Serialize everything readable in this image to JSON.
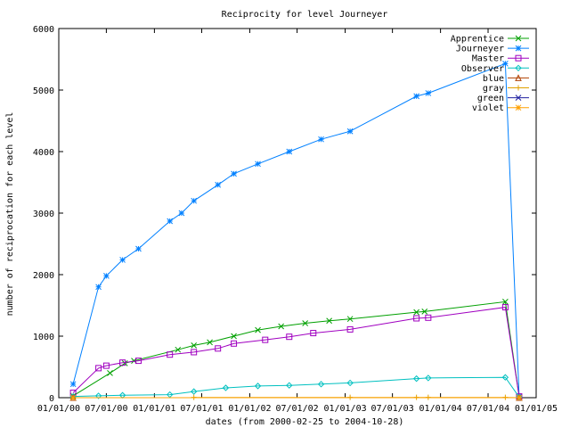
{
  "chart_data": {
    "type": "line",
    "title": "Reciprocity for level Journeyer",
    "xlabel": "dates (from 2000-02-25 to 2004-10-28)",
    "ylabel": "number of reciprocation for each level",
    "ylim": [
      0,
      6000
    ],
    "yticks": [
      0,
      1000,
      2000,
      3000,
      4000,
      5000,
      6000
    ],
    "xlim": [
      "2000-01-01",
      "2005-01-01"
    ],
    "xtick_dates": [
      "2000-01-01",
      "2000-07-01",
      "2001-01-01",
      "2001-07-01",
      "2002-01-01",
      "2002-07-01",
      "2003-01-01",
      "2003-07-01",
      "2004-01-01",
      "2004-07-01",
      "2005-01-01"
    ],
    "xtick_labels": [
      "01/01/00",
      "07/01/00",
      "01/01/01",
      "07/01/01",
      "01/01/02",
      "07/01/02",
      "01/01/03",
      "07/01/03",
      "01/01/04",
      "07/01/04",
      "01/01/05"
    ],
    "grid": false,
    "legend_position": "top-right",
    "series": [
      {
        "name": "Apprentice",
        "color": "#00a000",
        "marker": "x",
        "points": [
          [
            "2000-02-25",
            30
          ],
          [
            "2000-07-15",
            400
          ],
          [
            "2000-09-10",
            560
          ],
          [
            "2000-10-15",
            600
          ],
          [
            "2001-04-01",
            780
          ],
          [
            "2001-06-01",
            850
          ],
          [
            "2001-08-01",
            900
          ],
          [
            "2001-11-01",
            1000
          ],
          [
            "2002-02-01",
            1100
          ],
          [
            "2002-05-01",
            1160
          ],
          [
            "2002-08-01",
            1210
          ],
          [
            "2002-11-01",
            1250
          ],
          [
            "2003-01-20",
            1280
          ],
          [
            "2003-10-01",
            1390
          ],
          [
            "2003-11-01",
            1400
          ],
          [
            "2004-09-05",
            1560
          ],
          [
            "2004-10-28",
            20
          ]
        ]
      },
      {
        "name": "Journeyer",
        "color": "#0080ff",
        "marker": "*",
        "points": [
          [
            "2000-02-25",
            220
          ],
          [
            "2000-06-01",
            1800
          ],
          [
            "2000-07-01",
            1980
          ],
          [
            "2000-09-01",
            2240
          ],
          [
            "2000-11-01",
            2420
          ],
          [
            "2001-03-01",
            2870
          ],
          [
            "2001-04-15",
            3000
          ],
          [
            "2001-06-01",
            3200
          ],
          [
            "2001-09-01",
            3460
          ],
          [
            "2001-11-01",
            3640
          ],
          [
            "2002-02-01",
            3800
          ],
          [
            "2002-06-01",
            4000
          ],
          [
            "2002-10-01",
            4200
          ],
          [
            "2003-01-20",
            4330
          ],
          [
            "2003-10-01",
            4900
          ],
          [
            "2003-11-15",
            4950
          ],
          [
            "2004-09-05",
            5430
          ],
          [
            "2004-10-28",
            20
          ]
        ]
      },
      {
        "name": "Master",
        "color": "#a000c0",
        "marker": "square",
        "points": [
          [
            "2000-02-25",
            80
          ],
          [
            "2000-06-01",
            480
          ],
          [
            "2000-07-01",
            520
          ],
          [
            "2000-09-01",
            570
          ],
          [
            "2000-11-01",
            600
          ],
          [
            "2001-03-01",
            700
          ],
          [
            "2001-06-01",
            740
          ],
          [
            "2001-09-01",
            800
          ],
          [
            "2001-11-01",
            880
          ],
          [
            "2002-03-01",
            940
          ],
          [
            "2002-06-01",
            990
          ],
          [
            "2002-09-01",
            1050
          ],
          [
            "2003-01-20",
            1110
          ],
          [
            "2003-10-01",
            1290
          ],
          [
            "2003-11-15",
            1300
          ],
          [
            "2004-09-05",
            1470
          ],
          [
            "2004-10-28",
            20
          ]
        ]
      },
      {
        "name": "Observer",
        "color": "#00c0c0",
        "marker": "diamond",
        "points": [
          [
            "2000-02-25",
            20
          ],
          [
            "2000-06-01",
            30
          ],
          [
            "2000-09-01",
            40
          ],
          [
            "2001-03-01",
            50
          ],
          [
            "2001-06-01",
            100
          ],
          [
            "2001-10-01",
            160
          ],
          [
            "2002-02-01",
            190
          ],
          [
            "2002-06-01",
            200
          ],
          [
            "2002-10-01",
            220
          ],
          [
            "2003-01-20",
            240
          ],
          [
            "2003-10-01",
            310
          ],
          [
            "2003-11-15",
            320
          ],
          [
            "2004-09-05",
            330
          ],
          [
            "2004-10-28",
            10
          ]
        ]
      },
      {
        "name": "blue",
        "color": "#b04000",
        "marker": "triangle",
        "points": [
          [
            "2000-02-25",
            0
          ],
          [
            "2004-10-28",
            0
          ]
        ]
      },
      {
        "name": "gray",
        "color": "#e0a000",
        "marker": "plus",
        "points": [
          [
            "2001-06-01",
            5
          ],
          [
            "2003-01-20",
            5
          ],
          [
            "2003-10-01",
            5
          ],
          [
            "2003-11-15",
            5
          ],
          [
            "2004-09-05",
            5
          ],
          [
            "2004-10-28",
            0
          ]
        ]
      },
      {
        "name": "green",
        "color": "#2020a0",
        "marker": "x",
        "points": [
          [
            "2000-02-25",
            0
          ],
          [
            "2004-10-28",
            0
          ]
        ]
      },
      {
        "name": "violet",
        "color": "#ffa000",
        "marker": "*",
        "points": [
          [
            "2000-02-25",
            0
          ],
          [
            "2004-10-28",
            0
          ]
        ]
      }
    ]
  }
}
